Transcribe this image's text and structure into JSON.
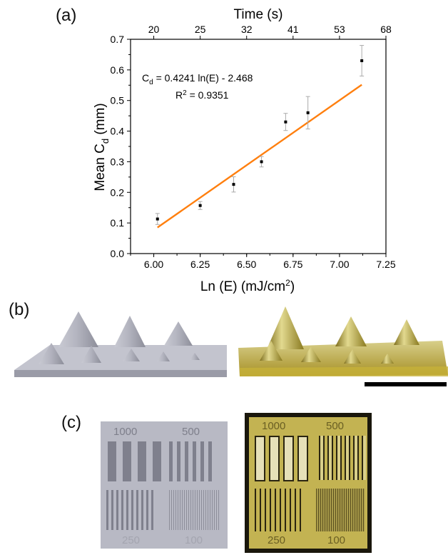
{
  "panels": {
    "a": "(a)",
    "b": "(b)",
    "c": "(c)"
  },
  "chart_data": {
    "type": "scatter",
    "top_axis_title": "Time (s)",
    "top_ticks": [
      "20",
      "25",
      "32",
      "41",
      "53",
      "68"
    ],
    "x_tick_labels": [
      "6.00",
      "6.25",
      "6.50",
      "6.75",
      "7.00",
      "7.25"
    ],
    "y_tick_labels": [
      "0.0",
      "0.1",
      "0.2",
      "0.3",
      "0.4",
      "0.5",
      "0.6",
      "0.7"
    ],
    "xlim": [
      5.875,
      7.25
    ],
    "ylim": [
      0,
      0.7
    ],
    "xlabel_main": "Ln (E) (mJ/cm",
    "xlabel_sup": "2",
    "xlabel_end": ")",
    "ylabel_main": "Mean C",
    "ylabel_sub": "d",
    "ylabel_end": " (mm)",
    "points": [
      {
        "x": 6.02,
        "y": 0.113,
        "err": 0.018
      },
      {
        "x": 6.25,
        "y": 0.157,
        "err": 0.013
      },
      {
        "x": 6.43,
        "y": 0.226,
        "err": 0.025
      },
      {
        "x": 6.58,
        "y": 0.3,
        "err": 0.017
      },
      {
        "x": 6.71,
        "y": 0.43,
        "err": 0.028
      },
      {
        "x": 6.83,
        "y": 0.46,
        "err": 0.053
      },
      {
        "x": 7.12,
        "y": 0.63,
        "err": 0.05
      }
    ],
    "fit": {
      "slope": 0.4241,
      "intercept": -2.468,
      "x_range": [
        6.02,
        7.12
      ],
      "color": "#ff7f0e"
    },
    "equation": {
      "c_main": "C",
      "c_sub": "d",
      "rest": " = 0.4241 ln(E) - 2.468",
      "r_main": "R",
      "r_sup": "2",
      "r_rest": " = 0.9351"
    },
    "grid": false,
    "marker_color": "#000000"
  },
  "panel_c": {
    "render_labels": [
      "1000",
      "500",
      "250",
      "100"
    ],
    "photo_labels": [
      "1000",
      "500",
      "250",
      "100"
    ]
  },
  "colors": {
    "render_gray": "#b8b9c4",
    "resin_yellow": "#b8a53a",
    "scale_bar": "#000000"
  }
}
